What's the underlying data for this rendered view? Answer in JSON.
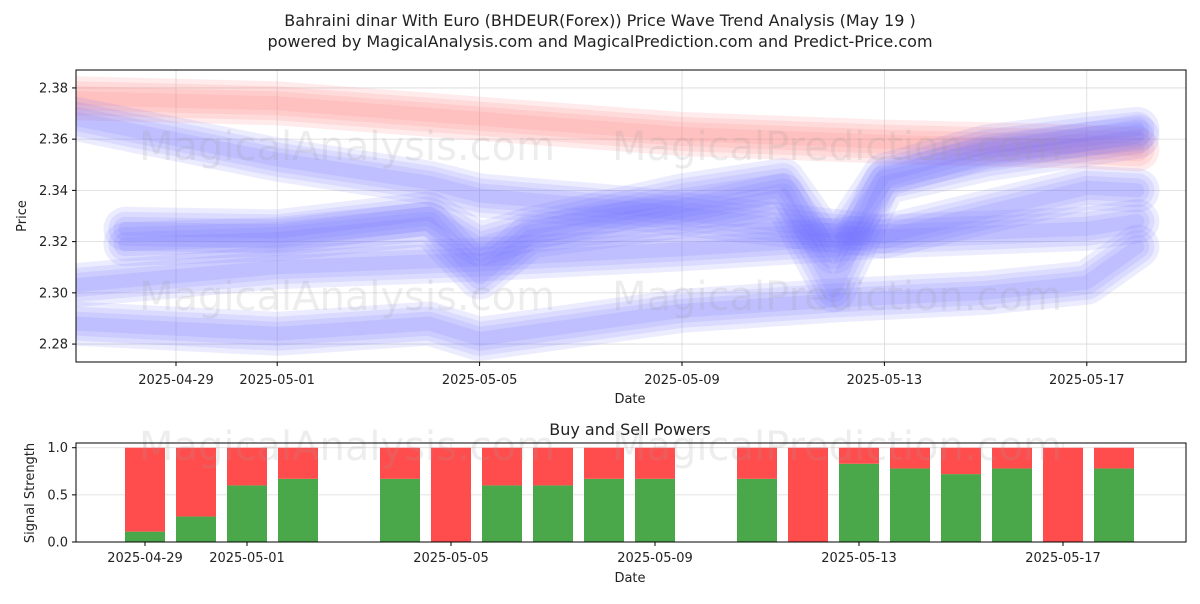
{
  "title_line1": "Bahraini dinar With Euro (BHDEUR(Forex)) Price Wave Trend Analysis (May 19 )",
  "title_line2": "powered by MagicalAnalysis.com and MagicalPrediction.com and Predict-Price.com",
  "watermarks": [
    "MagicalAnalysis.com",
    "MagicalPrediction.com"
  ],
  "chart_data": [
    {
      "type": "line",
      "title": "",
      "xlabel": "Date",
      "ylabel": "Price",
      "ylim": [
        2.273,
        2.387
      ],
      "yticks": [
        2.28,
        2.3,
        2.32,
        2.34,
        2.36,
        2.38
      ],
      "xticks": [
        "2025-04-29",
        "2025-05-01",
        "2025-05-05",
        "2025-05-09",
        "2025-05-13",
        "2025-05-17"
      ],
      "grid": true,
      "colors": {
        "red_band": "#ff8080",
        "blue_band": "#6a6aff"
      },
      "series": [
        {
          "color": "red",
          "x": [
            "2025-04-27",
            "2025-05-01",
            "2025-05-05",
            "2025-05-09",
            "2025-05-13",
            "2025-05-17",
            "2025-05-18"
          ],
          "y": [
            2.376,
            2.374,
            2.368,
            2.362,
            2.359,
            2.357,
            2.356
          ]
        },
        {
          "color": "blue",
          "x": [
            "2025-04-27",
            "2025-05-01",
            "2025-05-04",
            "2025-05-05",
            "2025-05-08",
            "2025-05-13",
            "2025-05-17",
            "2025-05-18"
          ],
          "y": [
            2.368,
            2.352,
            2.343,
            2.338,
            2.333,
            2.322,
            2.341,
            2.34
          ]
        },
        {
          "color": "blue",
          "x": [
            "2025-04-27",
            "2025-05-01",
            "2025-05-05",
            "2025-05-09",
            "2025-05-13",
            "2025-05-17",
            "2025-05-18"
          ],
          "y": [
            2.303,
            2.31,
            2.313,
            2.317,
            2.322,
            2.325,
            2.328
          ]
        },
        {
          "color": "blue",
          "x": [
            "2025-04-27",
            "2025-05-01",
            "2025-05-04",
            "2025-05-05",
            "2025-05-09",
            "2025-05-12",
            "2025-05-15",
            "2025-05-17",
            "2025-05-18"
          ],
          "y": [
            2.288,
            2.284,
            2.288,
            2.282,
            2.293,
            2.297,
            2.3,
            2.304,
            2.318
          ]
        },
        {
          "color": "blue",
          "x": [
            "2025-04-28",
            "2025-05-01",
            "2025-05-04",
            "2025-05-05",
            "2025-05-06",
            "2025-05-09",
            "2025-05-11",
            "2025-05-12",
            "2025-05-13",
            "2025-05-15",
            "2025-05-17",
            "2025-05-18"
          ],
          "y": [
            2.325,
            2.324,
            2.331,
            2.319,
            2.325,
            2.338,
            2.344,
            2.316,
            2.346,
            2.357,
            2.362,
            2.364
          ]
        },
        {
          "color": "blue",
          "x": [
            "2025-04-28",
            "2025-05-01",
            "2025-05-04",
            "2025-05-05",
            "2025-05-06",
            "2025-05-09",
            "2025-05-11",
            "2025-05-12",
            "2025-05-13",
            "2025-05-15",
            "2025-05-17",
            "2025-05-18"
          ],
          "y": [
            2.319,
            2.321,
            2.327,
            2.306,
            2.322,
            2.33,
            2.338,
            2.301,
            2.343,
            2.352,
            2.358,
            2.361
          ]
        }
      ]
    },
    {
      "type": "bar",
      "title": "Buy and Sell Powers",
      "xlabel": "Date",
      "ylabel": "Signal Strength",
      "ylim": [
        0,
        1.05
      ],
      "yticks": [
        0.0,
        0.5,
        1.0
      ],
      "xticks": [
        "2025-04-29",
        "2025-05-01",
        "2025-05-05",
        "2025-05-09",
        "2025-05-13",
        "2025-05-17"
      ],
      "grid": true,
      "colors": {
        "buy": "#4aa84a",
        "sell": "#ff4d4d"
      },
      "categories": [
        "2025-04-29",
        "2025-04-30",
        "2025-05-01",
        "2025-05-02",
        "2025-05-04",
        "2025-05-05",
        "2025-05-06",
        "2025-05-07",
        "2025-05-08",
        "2025-05-09",
        "2025-05-11",
        "2025-05-12",
        "2025-05-13",
        "2025-05-14",
        "2025-05-15",
        "2025-05-16",
        "2025-05-17",
        "2025-05-18"
      ],
      "series": [
        {
          "values": [
            0.11,
            0.27,
            0.6,
            0.67,
            0.67,
            0.0,
            0.6,
            0.6,
            0.67,
            0.67,
            0.67,
            0.0,
            0.83,
            0.78,
            0.72,
            0.78,
            0.0,
            0.78
          ]
        },
        {
          "values": [
            0.89,
            0.73,
            0.4,
            0.33,
            0.33,
            1.0,
            0.4,
            0.4,
            0.33,
            0.33,
            0.33,
            1.0,
            0.17,
            0.22,
            0.28,
            0.22,
            1.0,
            0.22
          ]
        }
      ]
    }
  ]
}
